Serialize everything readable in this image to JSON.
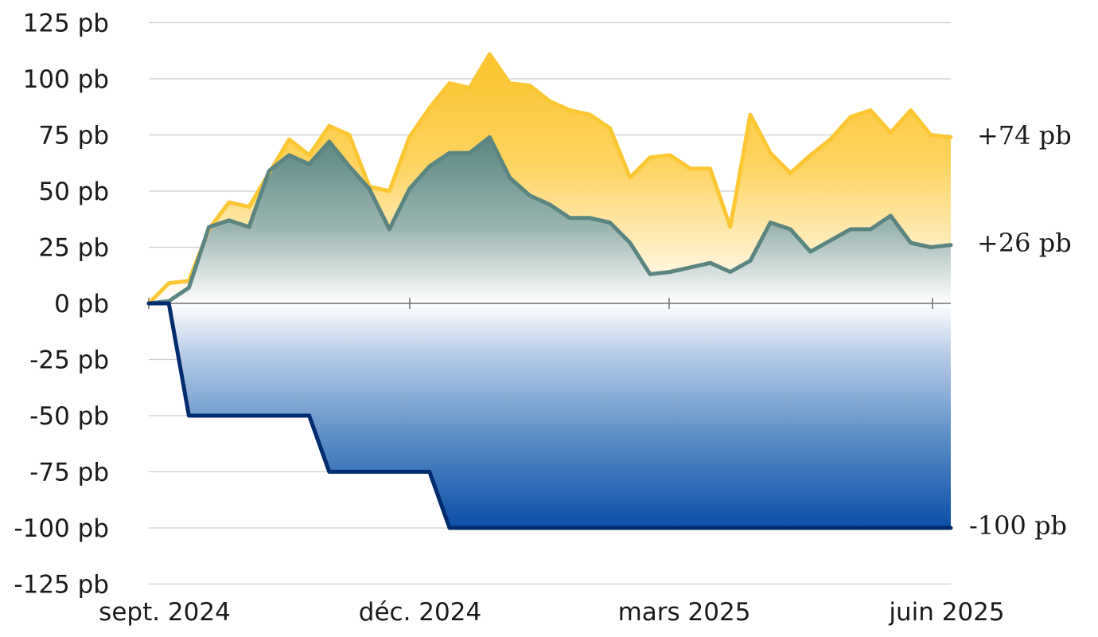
{
  "chart_data": {
    "type": "area",
    "title": "",
    "xlabel": "",
    "ylabel": "",
    "x_ticks": [
      "sept. 2024",
      "déc. 2024",
      "mars 2025",
      "juin 2025"
    ],
    "y_ticks": [
      "125 pb",
      "100 pb",
      "75 pb",
      "50 pb",
      "25 pb",
      "0 pb",
      "-25 pb",
      "-50 pb",
      "-75 pb",
      "-100 pb",
      "-125 pb"
    ],
    "ylim": [
      -125,
      125
    ],
    "grid": true,
    "colors": {
      "yellow": "#fcc733",
      "teal": "#5a8580",
      "navy": "#002b6e",
      "blue_fill": "#0a50a5"
    },
    "series": [
      {
        "key": "yellow",
        "end_label": "+74 pb",
        "values": [
          0,
          9,
          10,
          33,
          45,
          43,
          58,
          73,
          66,
          79,
          75,
          52,
          50,
          74,
          87,
          98,
          96,
          111,
          98,
          97,
          90,
          86,
          84,
          78,
          56,
          65,
          66,
          60,
          60,
          34,
          84,
          67,
          58,
          66,
          73,
          83,
          86,
          76,
          86,
          75,
          74
        ]
      },
      {
        "key": "teal",
        "end_label": "+26 pb",
        "values": [
          0,
          1,
          7,
          34,
          37,
          34,
          59,
          66,
          62,
          72,
          61,
          51,
          33,
          51,
          61,
          67,
          67,
          74,
          56,
          48,
          44,
          38,
          38,
          36,
          27,
          13,
          14,
          16,
          18,
          14,
          19,
          36,
          33,
          23,
          28,
          33,
          33,
          39,
          27,
          25,
          26
        ]
      },
      {
        "key": "navy",
        "end_label": "-100 pb",
        "values": [
          0,
          0,
          -50,
          -50,
          -50,
          -50,
          -50,
          -50,
          -50,
          -75,
          -75,
          -75,
          -75,
          -75,
          -75,
          -100,
          -100,
          -100,
          -100,
          -100,
          -100,
          -100,
          -100,
          -100,
          -100,
          -100,
          -100,
          -100,
          -100,
          -100,
          -100,
          -100,
          -100,
          -100,
          -100,
          -100,
          -100,
          -100,
          -100,
          -100,
          -100
        ]
      }
    ]
  }
}
